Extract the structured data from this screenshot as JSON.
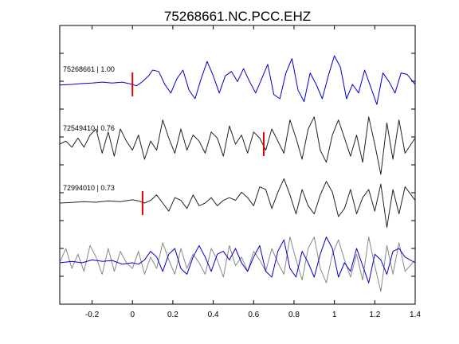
{
  "chart_data": {
    "type": "line",
    "title": "75268661.NC.PCC.EHZ",
    "xlim": [
      -0.36,
      1.4
    ],
    "x_ticks": [
      "-0.2",
      "0",
      "0.2",
      "0.4",
      "0.6",
      "0.8",
      "1",
      "1.2",
      "1.4"
    ],
    "x_tick_values": [
      -0.2,
      0,
      0.2,
      0.4,
      0.6,
      0.8,
      1.0,
      1.2,
      1.4
    ],
    "grid": false,
    "colors": {
      "primary": "#0000cc",
      "secondary": "#222222",
      "overlay_gray": "#888888",
      "pick": "#dd0000"
    },
    "series": [
      {
        "label": "75268661 | 1.00",
        "color": "#0000cc",
        "pick_x": 0.0,
        "x": [
          -0.36,
          -0.3,
          -0.25,
          -0.2,
          -0.15,
          -0.1,
          -0.05,
          0.0,
          0.02,
          0.05,
          0.08,
          0.1,
          0.13,
          0.16,
          0.19,
          0.22,
          0.25,
          0.28,
          0.31,
          0.34,
          0.37,
          0.4,
          0.43,
          0.46,
          0.49,
          0.52,
          0.55,
          0.58,
          0.61,
          0.64,
          0.67,
          0.7,
          0.73,
          0.76,
          0.79,
          0.82,
          0.85,
          0.88,
          0.91,
          0.94,
          0.97,
          1.0,
          1.03,
          1.06,
          1.09,
          1.12,
          1.15,
          1.18,
          1.21,
          1.24,
          1.27,
          1.3,
          1.33,
          1.36,
          1.4
        ],
        "y": [
          -0.02,
          0.0,
          0.03,
          0.05,
          0.08,
          0.05,
          0.08,
          0.0,
          -0.05,
          0.1,
          0.3,
          0.5,
          0.45,
          0.0,
          -0.3,
          0.2,
          0.5,
          -0.2,
          -0.5,
          0.2,
          0.8,
          0.3,
          -0.3,
          0.3,
          0.45,
          0.1,
          0.55,
          0.1,
          -0.3,
          0.2,
          0.7,
          -0.35,
          -0.5,
          0.4,
          0.9,
          -0.2,
          -0.6,
          0.4,
          0.0,
          -0.5,
          0.3,
          1.0,
          0.6,
          -0.5,
          0.0,
          -0.3,
          0.5,
          -0.1,
          -0.7,
          0.4,
          0.1,
          -0.3,
          0.4,
          0.35,
          0.0
        ]
      },
      {
        "label": "72549410 | 0.76",
        "color": "#222222",
        "pick_x": 0.65,
        "x": [
          -0.36,
          -0.33,
          -0.3,
          -0.27,
          -0.24,
          -0.21,
          -0.18,
          -0.15,
          -0.12,
          -0.09,
          -0.06,
          -0.03,
          0.0,
          0.03,
          0.06,
          0.09,
          0.12,
          0.15,
          0.18,
          0.21,
          0.24,
          0.27,
          0.3,
          0.33,
          0.36,
          0.39,
          0.42,
          0.45,
          0.48,
          0.51,
          0.54,
          0.57,
          0.6,
          0.63,
          0.66,
          0.69,
          0.72,
          0.75,
          0.78,
          0.81,
          0.84,
          0.87,
          0.9,
          0.93,
          0.96,
          0.99,
          1.02,
          1.05,
          1.08,
          1.11,
          1.14,
          1.17,
          1.2,
          1.23,
          1.26,
          1.29,
          1.32,
          1.35,
          1.4
        ],
        "y": [
          0.0,
          0.1,
          -0.1,
          0.2,
          -0.1,
          0.3,
          0.5,
          -0.3,
          0.4,
          -0.4,
          0.5,
          0.1,
          -0.2,
          0.3,
          -0.5,
          0.1,
          -0.2,
          0.8,
          0.2,
          -0.3,
          0.5,
          -0.2,
          0.3,
          0.1,
          -0.3,
          0.4,
          0.2,
          -0.4,
          0.6,
          0.0,
          0.3,
          -0.3,
          0.4,
          0.2,
          -0.2,
          0.5,
          0.1,
          -0.3,
          0.8,
          0.2,
          -0.5,
          0.5,
          0.9,
          -0.2,
          -0.6,
          0.3,
          0.8,
          0.2,
          -0.4,
          0.3,
          -0.6,
          0.9,
          0.0,
          -1.0,
          0.7,
          -0.5,
          0.8,
          -0.3,
          0.2
        ]
      },
      {
        "label": "72994010 | 0.73",
        "color": "#222222",
        "pick_x": 0.05,
        "x": [
          -0.36,
          -0.3,
          -0.24,
          -0.18,
          -0.12,
          -0.06,
          0.0,
          0.03,
          0.06,
          0.09,
          0.12,
          0.15,
          0.18,
          0.21,
          0.24,
          0.27,
          0.3,
          0.33,
          0.36,
          0.39,
          0.42,
          0.45,
          0.48,
          0.51,
          0.54,
          0.57,
          0.6,
          0.63,
          0.66,
          0.69,
          0.72,
          0.75,
          0.78,
          0.81,
          0.84,
          0.87,
          0.9,
          0.93,
          0.96,
          0.99,
          1.02,
          1.05,
          1.08,
          1.11,
          1.14,
          1.17,
          1.2,
          1.23,
          1.26,
          1.29,
          1.32,
          1.35,
          1.4
        ],
        "y": [
          0.0,
          0.02,
          0.05,
          0.03,
          0.08,
          0.05,
          0.12,
          0.08,
          0.0,
          0.1,
          0.3,
          0.0,
          -0.3,
          0.2,
          0.1,
          -0.2,
          0.3,
          -0.1,
          0.0,
          0.2,
          -0.1,
          0.1,
          0.2,
          0.1,
          0.4,
          0.2,
          -0.1,
          0.6,
          0.5,
          -0.2,
          0.4,
          0.9,
          0.3,
          -0.4,
          0.5,
          -0.1,
          -0.4,
          0.3,
          0.8,
          0.4,
          -0.5,
          -0.2,
          0.5,
          -0.4,
          0.2,
          0.5,
          -0.3,
          0.7,
          -0.9,
          0.5,
          -0.4,
          0.6,
          0.1
        ]
      },
      {
        "label": "",
        "color": "#888888",
        "pick_x": null,
        "x": [
          -0.36,
          -0.33,
          -0.3,
          -0.27,
          -0.24,
          -0.21,
          -0.18,
          -0.15,
          -0.12,
          -0.09,
          -0.06,
          -0.03,
          0.0,
          0.03,
          0.06,
          0.09,
          0.12,
          0.15,
          0.18,
          0.21,
          0.24,
          0.27,
          0.3,
          0.33,
          0.36,
          0.39,
          0.42,
          0.45,
          0.48,
          0.51,
          0.54,
          0.57,
          0.6,
          0.63,
          0.66,
          0.69,
          0.72,
          0.75,
          0.78,
          0.81,
          0.84,
          0.87,
          0.9,
          0.93,
          0.96,
          0.99,
          1.02,
          1.05,
          1.08,
          1.11,
          1.14,
          1.17,
          1.2,
          1.23,
          1.26,
          1.29,
          1.32,
          1.35,
          1.4
        ],
        "y": [
          0.0,
          0.5,
          -0.2,
          0.3,
          -0.3,
          0.6,
          0.2,
          -0.4,
          0.5,
          -0.3,
          0.4,
          0.0,
          -0.2,
          0.4,
          -0.4,
          0.2,
          -0.2,
          0.7,
          0.1,
          -0.4,
          0.5,
          -0.2,
          0.3,
          0.0,
          -0.4,
          0.5,
          0.1,
          -0.5,
          0.6,
          -0.1,
          0.2,
          -0.3,
          0.4,
          0.1,
          -0.3,
          0.5,
          0.0,
          -0.4,
          0.9,
          0.1,
          -0.6,
          0.5,
          0.9,
          -0.2,
          -0.7,
          0.3,
          0.8,
          0.1,
          -0.5,
          0.3,
          -0.6,
          0.9,
          -0.1,
          -1.0,
          0.6,
          -0.4,
          0.7,
          -0.3,
          0.1
        ]
      },
      {
        "label": "",
        "color": "#0000cc",
        "pick_x": null,
        "x": [
          -0.36,
          -0.3,
          -0.25,
          -0.2,
          -0.15,
          -0.1,
          -0.05,
          0.0,
          0.03,
          0.06,
          0.09,
          0.12,
          0.15,
          0.18,
          0.21,
          0.24,
          0.27,
          0.3,
          0.33,
          0.36,
          0.39,
          0.42,
          0.45,
          0.48,
          0.51,
          0.54,
          0.57,
          0.6,
          0.63,
          0.66,
          0.69,
          0.72,
          0.75,
          0.78,
          0.81,
          0.84,
          0.87,
          0.9,
          0.93,
          0.96,
          0.99,
          1.02,
          1.05,
          1.08,
          1.11,
          1.14,
          1.17,
          1.2,
          1.23,
          1.26,
          1.29,
          1.32,
          1.35,
          1.4
        ],
        "y": [
          0.0,
          0.05,
          0.0,
          0.1,
          0.05,
          0.08,
          -0.05,
          0.0,
          -0.05,
          0.1,
          0.4,
          0.2,
          -0.3,
          0.3,
          0.5,
          -0.2,
          -0.4,
          0.2,
          0.6,
          0.2,
          -0.3,
          0.3,
          0.4,
          0.1,
          0.5,
          0.0,
          -0.3,
          0.2,
          0.6,
          -0.3,
          -0.5,
          0.4,
          0.8,
          -0.2,
          -0.5,
          0.4,
          0.0,
          -0.5,
          0.3,
          0.9,
          0.5,
          -0.5,
          0.0,
          -0.3,
          0.5,
          -0.1,
          -0.7,
          0.3,
          0.1,
          -0.4,
          0.4,
          0.5,
          0.2,
          0.0
        ]
      }
    ]
  }
}
